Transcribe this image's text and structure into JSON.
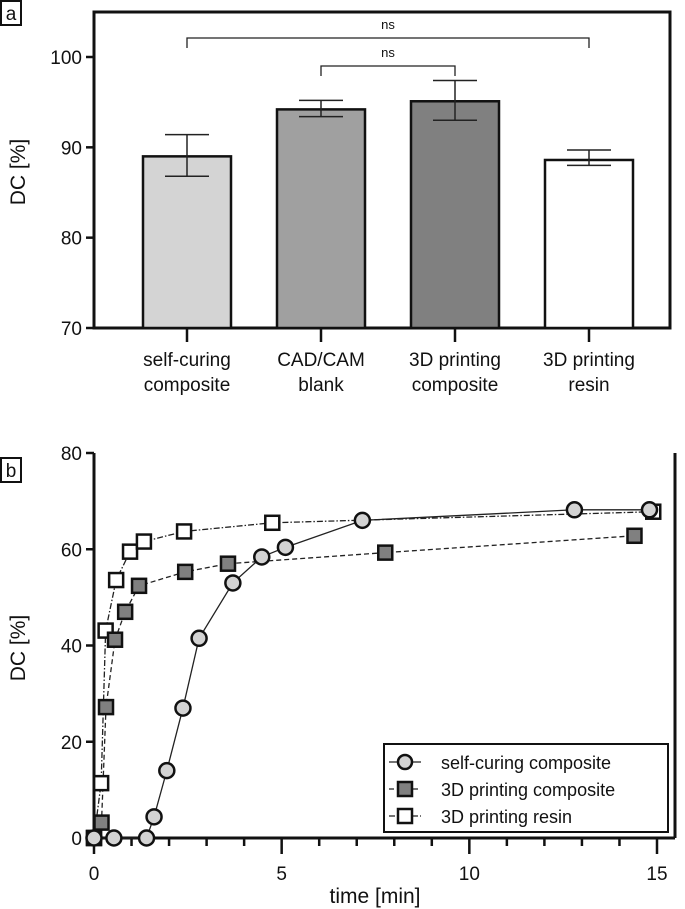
{
  "chart_data": [
    {
      "panel_label": "a",
      "type": "bar",
      "categories": [
        [
          "self-curing",
          "composite"
        ],
        [
          "CAD/CAM",
          "blank"
        ],
        [
          "3D printing",
          "composite"
        ],
        [
          "3D printing",
          "resin"
        ]
      ],
      "values": [
        89.0,
        94.2,
        95.1,
        88.6
      ],
      "error_low": [
        86.8,
        93.4,
        93.0,
        88.0
      ],
      "error_high": [
        91.4,
        95.2,
        97.4,
        89.7
      ],
      "bar_colors": [
        "#d4d4d4",
        "#a0a0a0",
        "#808080",
        "#ffffff"
      ],
      "ylabel": "DC [%]",
      "ylim": [
        70,
        105
      ],
      "yticks": [
        70,
        80,
        90,
        100
      ],
      "significance": [
        {
          "from": 0,
          "to": 3,
          "label": "ns"
        },
        {
          "from": 1,
          "to": 2,
          "label": "ns"
        }
      ],
      "grid": false
    },
    {
      "panel_label": "b",
      "type": "line",
      "xlabel": "time [min]",
      "ylabel": "DC [%]",
      "xlim": [
        0,
        15.5
      ],
      "ylim": [
        0,
        80
      ],
      "xticks": [
        0,
        5,
        10,
        15
      ],
      "yticks": [
        0,
        20,
        40,
        60,
        80
      ],
      "grid": false,
      "legend_position": "bottom-right",
      "series": [
        {
          "name": "self-curing composite",
          "marker": "circle",
          "fill": "#d3d3d3",
          "line": "solid",
          "x": [
            0,
            0.53,
            1.4,
            1.6,
            1.94,
            2.37,
            2.8,
            3.7,
            4.47,
            5.1,
            7.15,
            12.8,
            14.8
          ],
          "y": [
            0,
            0,
            0,
            4.4,
            14,
            27,
            41.5,
            53,
            58.4,
            60.4,
            66,
            68.2,
            68.2
          ]
        },
        {
          "name": "3D printing composite",
          "marker": "square",
          "fill": "#808080",
          "line": "dashed",
          "x": [
            0,
            0.2,
            0.32,
            0.56,
            0.83,
            1.2,
            2.43,
            3.57,
            7.76,
            14.4
          ],
          "y": [
            0,
            3.2,
            27.2,
            41.2,
            47,
            52.4,
            55.3,
            57,
            59.3,
            62.8
          ]
        },
        {
          "name": "3D printing resin",
          "marker": "square",
          "fill": "#ffffff",
          "line": "dashdot",
          "x": [
            0,
            0.19,
            0.31,
            0.59,
            0.96,
            1.33,
            2.4,
            4.75,
            14.9
          ],
          "y": [
            0,
            11.4,
            43.1,
            53.6,
            59.5,
            61.6,
            63.7,
            65.5,
            67.8
          ]
        }
      ]
    }
  ]
}
